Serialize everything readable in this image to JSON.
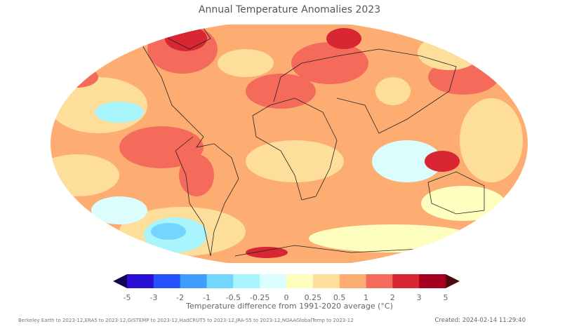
{
  "title": "Annual Temperature Anomalies 2023",
  "colorbar": {
    "label": "Temperature difference from 1991-2020 average (°C)",
    "ticks": [
      "-5",
      "-3",
      "-2",
      "-1",
      "-0.5",
      "-0.25",
      "0",
      "0.25",
      "0.5",
      "1",
      "2",
      "3",
      "5"
    ],
    "colors": [
      "#2a0fd6",
      "#2650fe",
      "#3f9dfd",
      "#72d6fe",
      "#a8f5fd",
      "#dcfdfe",
      "#fefebf",
      "#fddf9b",
      "#fdad72",
      "#f46a5b",
      "#d82632",
      "#a50020"
    ],
    "under_color": "#140552",
    "over_color": "#4a0a10"
  },
  "footer": {
    "sources": "Berkeley Earth to 2023-12,ERA5 to 2023-12,GISTEMP to 2023-12,HadCRUT5 to 2023-12,JRA-55 to 2023-12,NOAAGlobalTemp to 2023-12",
    "created": "Created: 2024-02-14 11:29:40"
  }
}
